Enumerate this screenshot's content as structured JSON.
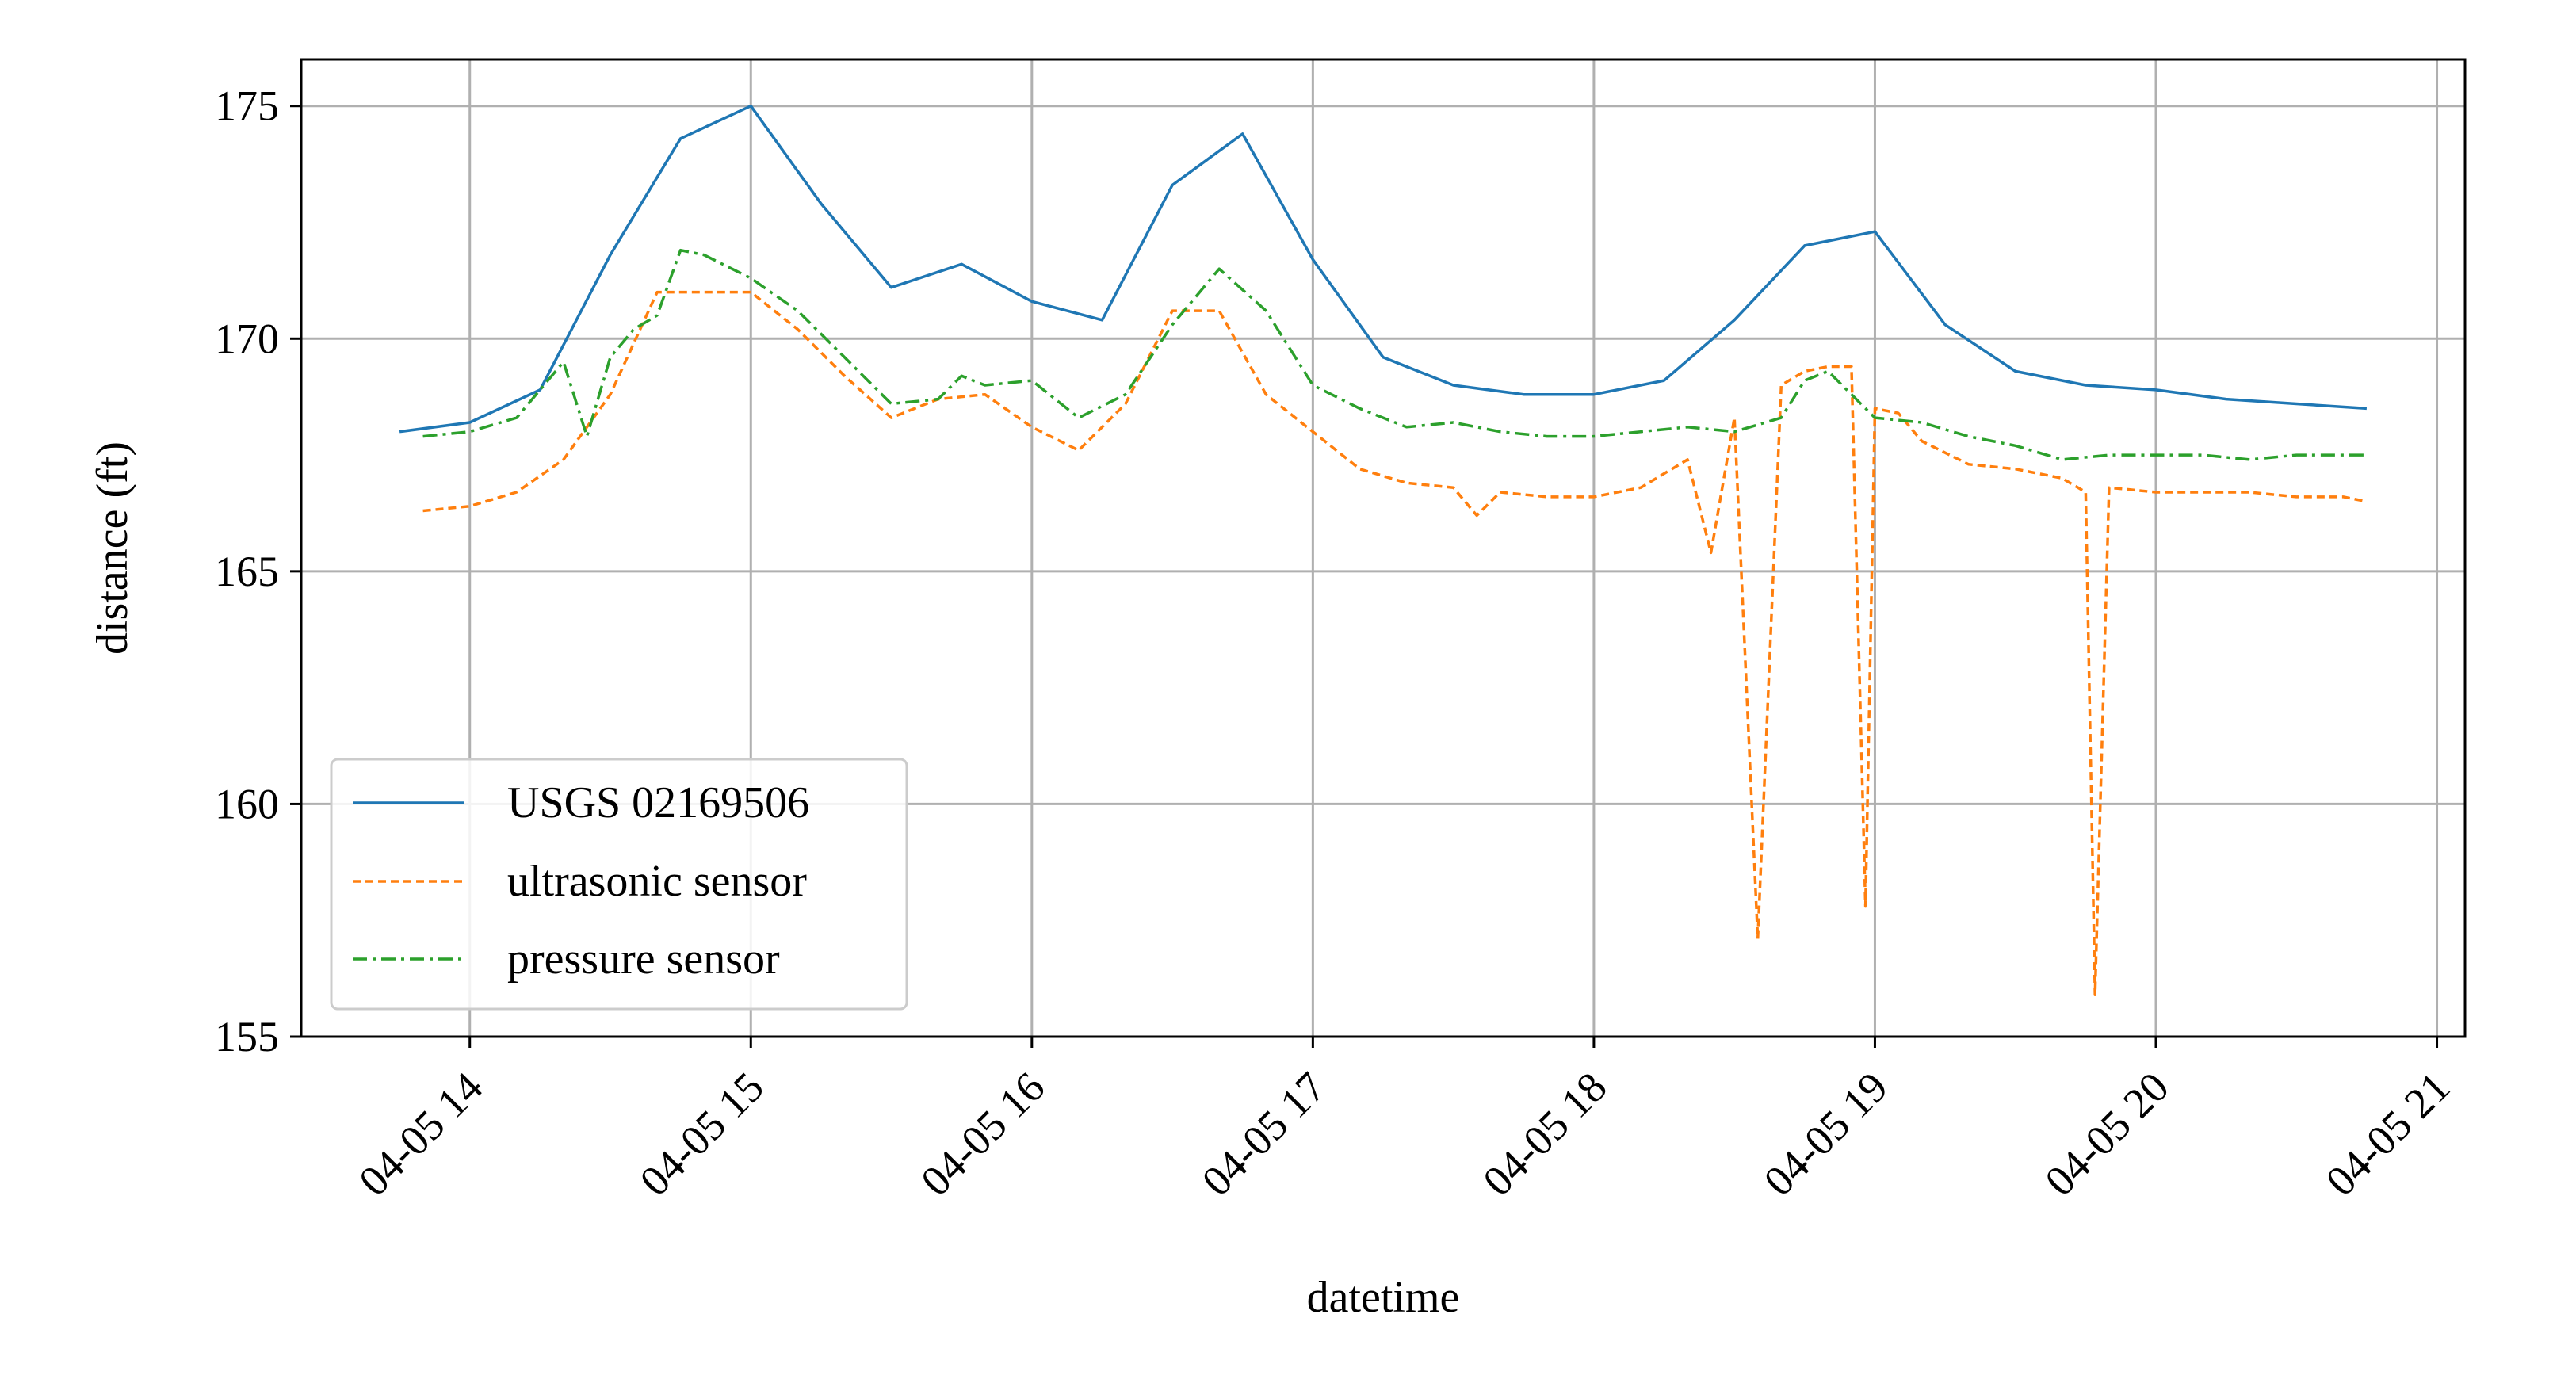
{
  "chart_data": {
    "type": "line",
    "xlabel": "datetime",
    "ylabel": "distance (ft)",
    "ylim": [
      155,
      176
    ],
    "xlim": [
      "04-05 13:24",
      "04-05 21:06"
    ],
    "x_ticks": [
      "04-05 14",
      "04-05 15",
      "04-05 16",
      "04-05 17",
      "04-05 18",
      "04-05 19",
      "04-05 20",
      "04-05 21"
    ],
    "y_ticks": [
      155,
      160,
      165,
      170,
      175
    ],
    "grid": true,
    "legend_position": "lower-left",
    "series": [
      {
        "name": "USGS 02169506",
        "color": "#1f77b4",
        "style": "solid",
        "x": [
          "04-05 13:45",
          "04-05 14:00",
          "04-05 14:15",
          "04-05 14:30",
          "04-05 14:45",
          "04-05 15:00",
          "04-05 15:15",
          "04-05 15:30",
          "04-05 15:45",
          "04-05 16:00",
          "04-05 16:15",
          "04-05 16:30",
          "04-05 16:45",
          "04-05 17:00",
          "04-05 17:15",
          "04-05 17:30",
          "04-05 17:45",
          "04-05 18:00",
          "04-05 18:15",
          "04-05 18:30",
          "04-05 18:45",
          "04-05 19:00",
          "04-05 19:15",
          "04-05 19:30",
          "04-05 19:45",
          "04-05 20:00",
          "04-05 20:15",
          "04-05 20:30",
          "04-05 20:45"
        ],
        "y": [
          168.0,
          168.2,
          168.9,
          171.8,
          174.3,
          175.0,
          172.9,
          171.1,
          171.6,
          170.8,
          170.4,
          173.3,
          174.4,
          171.7,
          169.6,
          169.0,
          168.8,
          168.8,
          169.1,
          170.4,
          172.0,
          172.3,
          170.3,
          169.3,
          169.0,
          168.9,
          168.7,
          168.6,
          168.5
        ]
      },
      {
        "name": "ultrasonic sensor",
        "color": "#ff7f0e",
        "style": "dashed",
        "x": [
          "04-05 13:50",
          "04-05 14:00",
          "04-05 14:10",
          "04-05 14:20",
          "04-05 14:30",
          "04-05 14:40",
          "04-05 14:50",
          "04-05 15:00",
          "04-05 15:10",
          "04-05 15:20",
          "04-05 15:30",
          "04-05 15:40",
          "04-05 15:50",
          "04-05 16:00",
          "04-05 16:10",
          "04-05 16:20",
          "04-05 16:30",
          "04-05 16:40",
          "04-05 16:50",
          "04-05 17:00",
          "04-05 17:10",
          "04-05 17:20",
          "04-05 17:30",
          "04-05 17:35",
          "04-05 17:40",
          "04-05 17:50",
          "04-05 18:00",
          "04-05 18:10",
          "04-05 18:20",
          "04-05 18:25",
          "04-05 18:30",
          "04-05 18:35",
          "04-05 18:40",
          "04-05 18:45",
          "04-05 18:50",
          "04-05 18:55",
          "04-05 18:58",
          "04-05 19:00",
          "04-05 19:05",
          "04-05 19:10",
          "04-05 19:20",
          "04-05 19:30",
          "04-05 19:40",
          "04-05 19:45",
          "04-05 19:47",
          "04-05 19:50",
          "04-05 20:00",
          "04-05 20:10",
          "04-05 20:20",
          "04-05 20:30",
          "04-05 20:40",
          "04-05 20:45"
        ],
        "y": [
          166.3,
          166.4,
          166.7,
          167.4,
          168.8,
          171.0,
          171.0,
          171.0,
          170.2,
          169.2,
          168.3,
          168.7,
          168.8,
          168.1,
          167.6,
          168.6,
          170.6,
          170.6,
          168.8,
          168.0,
          167.2,
          166.9,
          166.8,
          166.2,
          166.7,
          166.6,
          166.6,
          166.8,
          167.4,
          165.4,
          168.3,
          157.1,
          169.0,
          169.3,
          169.4,
          169.4,
          157.8,
          168.5,
          168.4,
          167.8,
          167.3,
          167.2,
          167.0,
          166.7,
          155.9,
          166.8,
          166.7,
          166.7,
          166.7,
          166.6,
          166.6,
          166.5
        ]
      },
      {
        "name": "pressure sensor",
        "color": "#2ca02c",
        "style": "dashdot",
        "x": [
          "04-05 13:50",
          "04-05 14:00",
          "04-05 14:10",
          "04-05 14:20",
          "04-05 14:25",
          "04-05 14:30",
          "04-05 14:35",
          "04-05 14:40",
          "04-05 14:45",
          "04-05 14:50",
          "04-05 15:00",
          "04-05 15:10",
          "04-05 15:20",
          "04-05 15:30",
          "04-05 15:40",
          "04-05 15:45",
          "04-05 15:50",
          "04-05 16:00",
          "04-05 16:10",
          "04-05 16:20",
          "04-05 16:30",
          "04-05 16:40",
          "04-05 16:50",
          "04-05 17:00",
          "04-05 17:10",
          "04-05 17:20",
          "04-05 17:30",
          "04-05 17:40",
          "04-05 17:50",
          "04-05 18:00",
          "04-05 18:10",
          "04-05 18:20",
          "04-05 18:30",
          "04-05 18:40",
          "04-05 18:45",
          "04-05 18:50",
          "04-05 19:00",
          "04-05 19:10",
          "04-05 19:20",
          "04-05 19:30",
          "04-05 19:40",
          "04-05 19:50",
          "04-05 20:00",
          "04-05 20:10",
          "04-05 20:20",
          "04-05 20:30",
          "04-05 20:40",
          "04-05 20:45"
        ],
        "y": [
          167.9,
          168.0,
          168.3,
          169.5,
          167.9,
          169.6,
          170.2,
          170.5,
          171.9,
          171.8,
          171.3,
          170.6,
          169.6,
          168.6,
          168.7,
          169.2,
          169.0,
          169.1,
          168.3,
          168.8,
          170.3,
          171.5,
          170.6,
          169.0,
          168.5,
          168.1,
          168.2,
          168.0,
          167.9,
          167.9,
          168.0,
          168.1,
          168.0,
          168.3,
          169.1,
          169.3,
          168.3,
          168.2,
          167.9,
          167.7,
          167.4,
          167.5,
          167.5,
          167.5,
          167.4,
          167.5,
          167.5,
          167.5
        ]
      }
    ]
  }
}
